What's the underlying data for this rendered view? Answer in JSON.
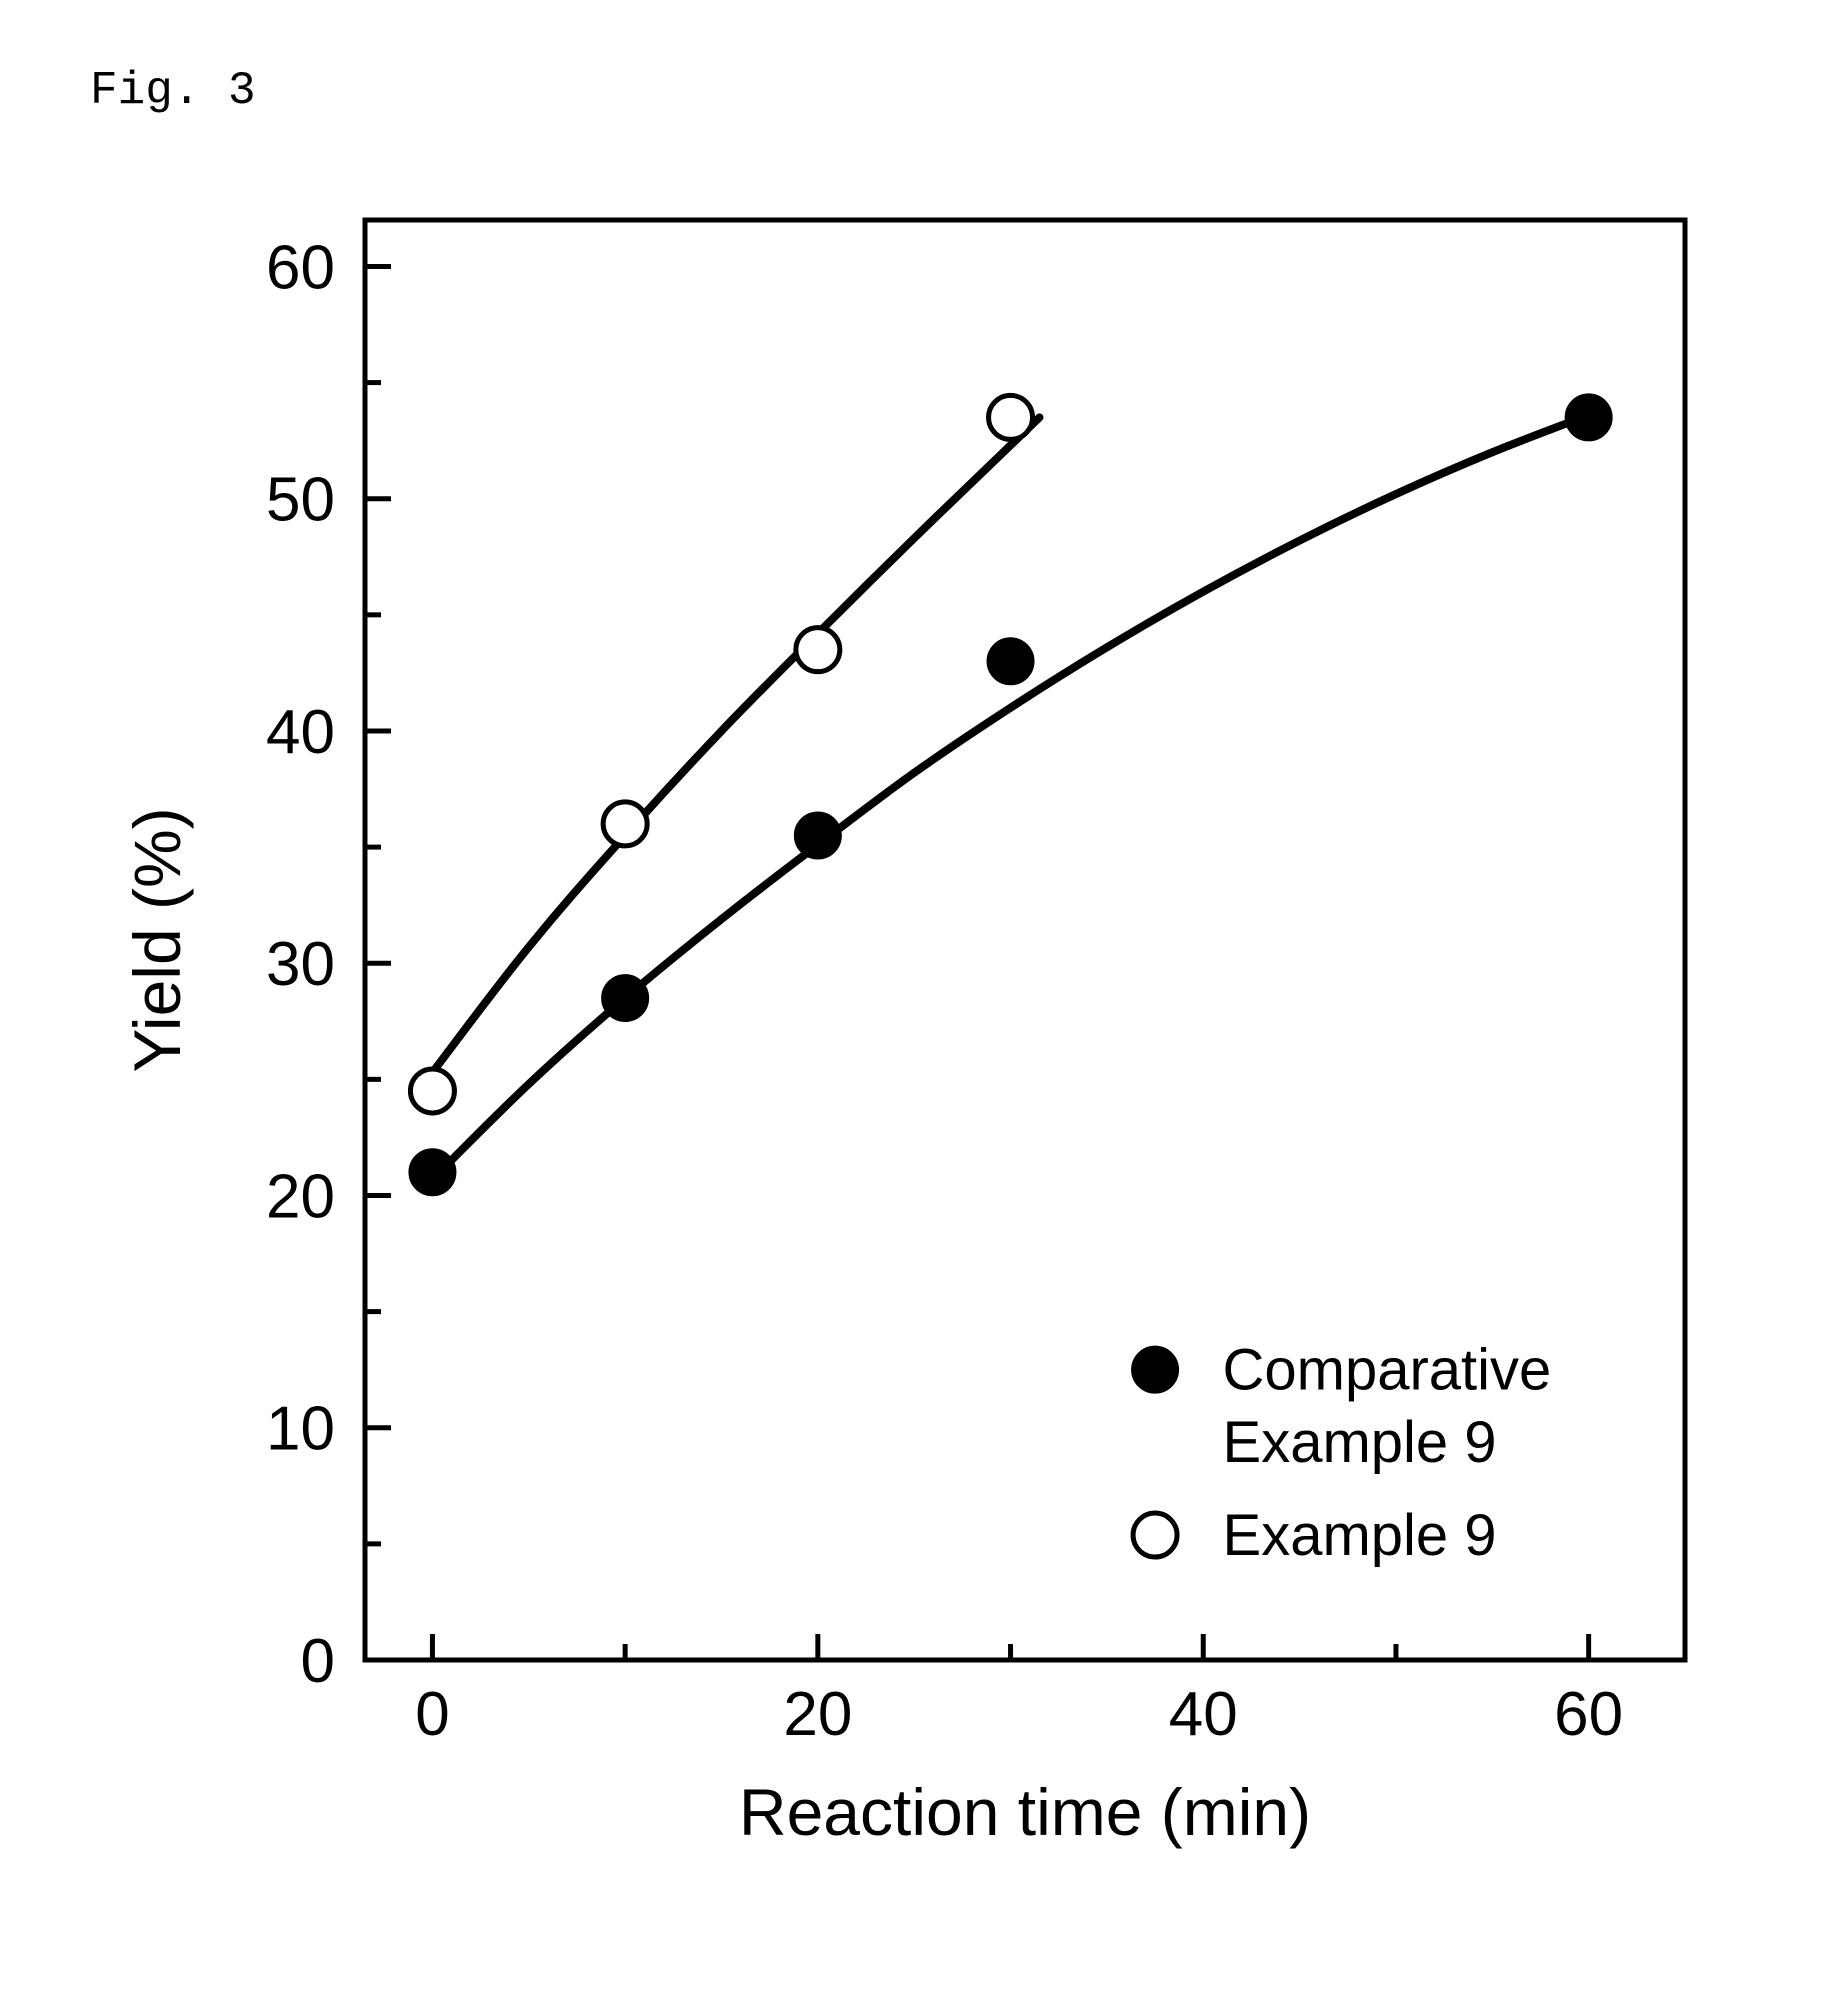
{
  "figure_label": "Fig. 3",
  "chart": {
    "type": "scatter-line",
    "background_color": "#ffffff",
    "axis_color": "#000000",
    "axis_line_width": 5,
    "tick_length_major": 26,
    "tick_length_minor": 16,
    "tick_width": 5,
    "xlabel": "Reaction time (min)",
    "ylabel": "Yield (%)",
    "label_fontsize": 66,
    "label_fontfamily": "Arial, Helvetica, sans-serif",
    "tick_fontsize": 62,
    "tick_fontfamily": "Arial, Helvetica, sans-serif",
    "x": {
      "min": -3.5,
      "max": 65,
      "ticks": [
        0,
        20,
        40,
        60
      ],
      "minor_step": 10
    },
    "y": {
      "min": 0,
      "max": 62,
      "ticks": [
        0,
        10,
        20,
        30,
        40,
        50,
        60
      ],
      "minor_step": 5
    },
    "series": [
      {
        "name": "Comparative Example 9",
        "marker": "filled-circle",
        "marker_radius": 22,
        "marker_stroke": "#000000",
        "marker_stroke_width": 4,
        "marker_fill": "#000000",
        "line_color": "#000000",
        "line_width": 8,
        "points": [
          {
            "x": 0,
            "y": 21.0
          },
          {
            "x": 10,
            "y": 28.5
          },
          {
            "x": 20,
            "y": 35.5
          },
          {
            "x": 30,
            "y": 43.0
          },
          {
            "x": 60,
            "y": 53.5
          }
        ],
        "curve": [
          {
            "x": 0,
            "y": 20.7
          },
          {
            "x": 5,
            "y": 24.8
          },
          {
            "x": 10,
            "y": 28.5
          },
          {
            "x": 15,
            "y": 31.9
          },
          {
            "x": 20,
            "y": 35.1
          },
          {
            "x": 25,
            "y": 38.2
          },
          {
            "x": 30,
            "y": 41.0
          },
          {
            "x": 35,
            "y": 43.6
          },
          {
            "x": 40,
            "y": 46.0
          },
          {
            "x": 45,
            "y": 48.2
          },
          {
            "x": 50,
            "y": 50.2
          },
          {
            "x": 55,
            "y": 52.0
          },
          {
            "x": 60,
            "y": 53.6
          }
        ]
      },
      {
        "name": "Example 9",
        "marker": "open-circle",
        "marker_radius": 22,
        "marker_stroke": "#000000",
        "marker_stroke_width": 5,
        "marker_fill": "#ffffff",
        "line_color": "#000000",
        "line_width": 8,
        "points": [
          {
            "x": 0,
            "y": 24.5
          },
          {
            "x": 10,
            "y": 36.0
          },
          {
            "x": 20,
            "y": 43.5
          },
          {
            "x": 30,
            "y": 53.5
          }
        ],
        "curve": [
          {
            "x": 0,
            "y": 25.3
          },
          {
            "x": 5,
            "y": 30.7
          },
          {
            "x": 10,
            "y": 35.5
          },
          {
            "x": 15,
            "y": 40.0
          },
          {
            "x": 20,
            "y": 44.2
          },
          {
            "x": 25,
            "y": 48.3
          },
          {
            "x": 30,
            "y": 52.3
          },
          {
            "x": 31.5,
            "y": 53.5
          }
        ]
      }
    ],
    "legend": {
      "x_data": 41,
      "y_data_top": 12.5,
      "line_gap": 4.0,
      "marker_offset_x": -3.5,
      "text_fontsize": 58,
      "text_fontfamily": "Arial, Helvetica, sans-serif",
      "text_color": "#000000",
      "items": [
        {
          "series_index": 0,
          "lines": [
            "Comparative",
            "Example 9"
          ]
        },
        {
          "series_index": 1,
          "lines": [
            "Example 9"
          ]
        }
      ]
    }
  }
}
